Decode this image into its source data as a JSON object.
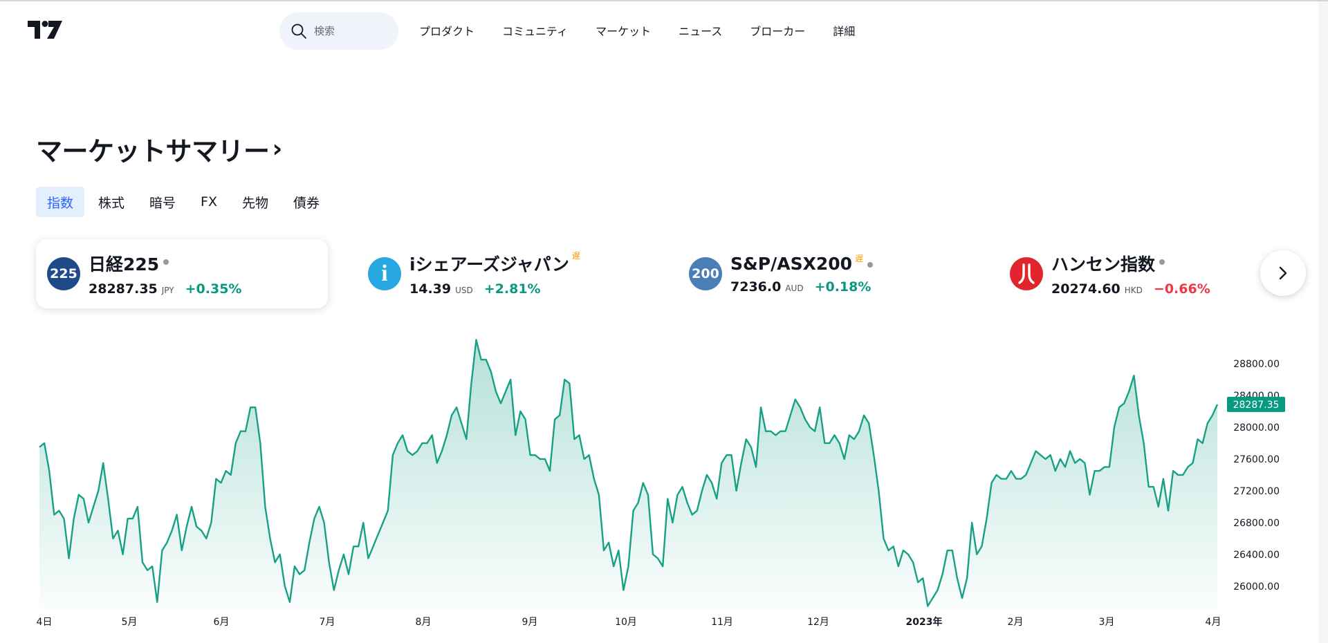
{
  "header": {
    "logo": "tradingview-logo",
    "search_placeholder": "検索",
    "nav": [
      "プロダクト",
      "コミュニティ",
      "マーケット",
      "ニュース",
      "ブローカー",
      "詳細"
    ]
  },
  "title": "マーケットサマリー",
  "title_chevron": "›",
  "tabs": [
    "指数",
    "株式",
    "暗号",
    "FX",
    "先物",
    "債券"
  ],
  "active_tab": "指数",
  "tickers": [
    {
      "badge": "225",
      "name": "日経225",
      "delayed": "",
      "price": "28287.35",
      "currency": "JPY",
      "change": "+0.35%",
      "badge_color": "#1f4a8a",
      "direction": "up"
    },
    {
      "badge": "i",
      "name": "iシェアーズジャパン",
      "delayed": "遅",
      "price": "14.39",
      "currency": "USD",
      "change": "+2.81%",
      "badge_color": "#28a8e0",
      "direction": "up"
    },
    {
      "badge": "200",
      "name": "S&P/ASX200",
      "delayed": "遅",
      "price": "7236.0",
      "currency": "AUD",
      "change": "+0.18%",
      "badge_color": "#4a7fb5",
      "direction": "up"
    },
    {
      "badge": "",
      "name": "ハンセン指数",
      "delayed": "",
      "price": "20274.60",
      "currency": "HKD",
      "change": "−0.66%",
      "badge_color": "#e0252c",
      "direction": "down"
    }
  ],
  "colors": {
    "up": "#089981",
    "down": "#f23645",
    "accent": "#2962ff",
    "line": "#16a085"
  },
  "chart_data": {
    "type": "area",
    "title": "",
    "xlabel": "",
    "ylabel": "",
    "x_tick_labels": [
      "4日",
      "5月",
      "6月",
      "7月",
      "8月",
      "9月",
      "10月",
      "11月",
      "12月",
      "2023年",
      "2月",
      "3月",
      "4月"
    ],
    "y_tick_labels": [
      "28800.00",
      "28400.00",
      "28000.00",
      "27600.00",
      "27200.00",
      "26800.00",
      "26400.00",
      "26000.00"
    ],
    "y_ticks": [
      28800,
      28400,
      28000,
      27600,
      27200,
      26800,
      26400,
      26000
    ],
    "ylim": [
      25720,
      29200
    ],
    "last_value": 28287.35,
    "last_value_label": "28287.35",
    "grid": false,
    "values": [
      27750,
      27800,
      27450,
      26900,
      26950,
      26850,
      26350,
      26850,
      27150,
      27100,
      26800,
      27000,
      27200,
      27550,
      27100,
      26600,
      26700,
      26400,
      26850,
      26850,
      27000,
      26300,
      26200,
      26250,
      25800,
      26450,
      26550,
      26700,
      26900,
      26450,
      26750,
      27000,
      26750,
      26700,
      26600,
      26800,
      27350,
      27300,
      27450,
      27400,
      27800,
      27950,
      27950,
      28250,
      28250,
      27800,
      27000,
      26600,
      26300,
      26400,
      26000,
      25800,
      26250,
      26150,
      26200,
      26550,
      26850,
      27000,
      26800,
      26300,
      25950,
      26200,
      26400,
      26150,
      26500,
      26500,
      26800,
      26350,
      26500,
      26650,
      26800,
      26950,
      27650,
      27800,
      27900,
      27700,
      27650,
      27700,
      27800,
      27800,
      27900,
      27550,
      27700,
      27900,
      28150,
      28250,
      28050,
      27850,
      28550,
      29100,
      28850,
      28850,
      28700,
      28450,
      28300,
      28450,
      28600,
      27900,
      28200,
      28100,
      27650,
      27650,
      27600,
      27600,
      27450,
      28100,
      28150,
      28600,
      28550,
      27850,
      27900,
      27600,
      27650,
      27350,
      27150,
      26450,
      26550,
      26250,
      26450,
      25950,
      26250,
      26950,
      27050,
      27300,
      27150,
      26400,
      26350,
      26250,
      27100,
      26800,
      27150,
      27250,
      27050,
      26900,
      26950,
      27200,
      27400,
      27300,
      27100,
      27550,
      27650,
      27650,
      27200,
      27550,
      27850,
      27750,
      27500,
      28250,
      27950,
      27950,
      27900,
      27950,
      27950,
      28150,
      28350,
      28250,
      28100,
      28000,
      27950,
      28250,
      27800,
      27800,
      27900,
      27800,
      27600,
      27900,
      27850,
      27950,
      28150,
      28050,
      27650,
      27200,
      26600,
      26450,
      26500,
      26250,
      26450,
      26400,
      26300,
      26050,
      26100,
      25750,
      25850,
      25950,
      26150,
      26450,
      26450,
      26100,
      25850,
      26100,
      26800,
      26400,
      26500,
      26850,
      27300,
      27400,
      27350,
      27350,
      27450,
      27350,
      27350,
      27400,
      27550,
      27700,
      27650,
      27600,
      27650,
      27450,
      27600,
      27500,
      27700,
      27550,
      27600,
      27550,
      27150,
      27450,
      27450,
      27500,
      27500,
      28000,
      28250,
      28300,
      28450,
      28650,
      28150,
      27800,
      27250,
      27250,
      27000,
      27350,
      26950,
      27450,
      27400,
      27400,
      27500,
      27550,
      27850,
      27800,
      28050,
      28150,
      28287
    ]
  }
}
